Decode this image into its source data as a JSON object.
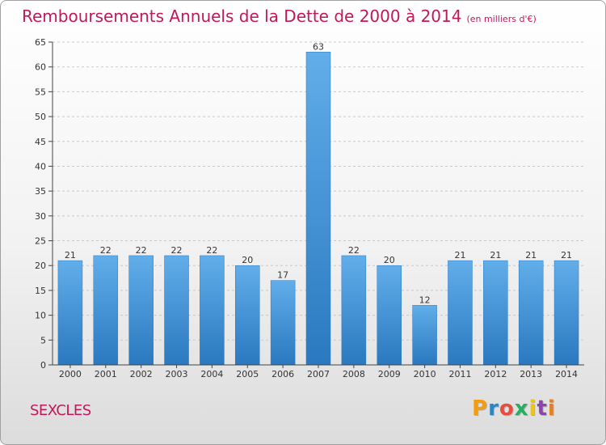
{
  "header": {
    "title": "Remboursements Annuels de la Dette de 2000 à 2014",
    "unit": "(en milliers d'€)"
  },
  "footer": {
    "city": "SEXCLES",
    "logo": "Proxiti",
    "logo_colors": [
      "#f39c12",
      "#2e86c1",
      "#e74c3c",
      "#27ae60",
      "#f1c40f",
      "#8e44ad",
      "#e67e22"
    ]
  },
  "chart_data": {
    "type": "bar",
    "categories": [
      "2000",
      "2001",
      "2002",
      "2003",
      "2004",
      "2005",
      "2006",
      "2007",
      "2008",
      "2009",
      "2010",
      "2011",
      "2012",
      "2013",
      "2014"
    ],
    "values": [
      21,
      22,
      22,
      22,
      22,
      20,
      17,
      63,
      22,
      20,
      12,
      21,
      21,
      21,
      21
    ],
    "title": "Remboursements Annuels de la Dette de 2000 à 2014",
    "xlabel": "",
    "ylabel": "",
    "ylim": [
      0,
      65
    ],
    "yticks": [
      0,
      5,
      10,
      15,
      20,
      25,
      30,
      35,
      40,
      45,
      50,
      55,
      60,
      65
    ],
    "grid": "horizontal-dashed",
    "legend": "none",
    "bar_color": "#3a8fd6",
    "bar_color_light": "#62aeea",
    "bar_color_dark": "#2a78bf"
  }
}
